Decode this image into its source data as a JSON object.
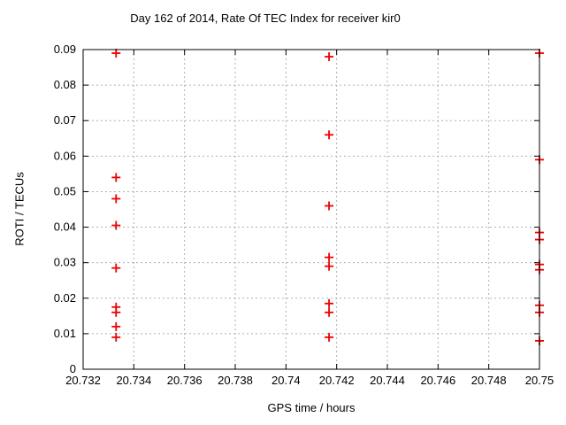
{
  "figure": {
    "background": "#ffffff",
    "text_color": "#000000",
    "border_color": "#000000",
    "grid_color": "#b0b0b0"
  },
  "chart_data": {
    "type": "scatter",
    "title": "Day 162 of 2014, Rate Of TEC Index for receiver kir0",
    "xlabel": "GPS time / hours",
    "ylabel": "ROTI / TECUs",
    "xlim": [
      20.732,
      20.75
    ],
    "ylim": [
      0,
      0.09
    ],
    "grid": "dotted",
    "legend": "none",
    "xticks": {
      "values": [
        20.732,
        20.734,
        20.736,
        20.738,
        20.74,
        20.742,
        20.744,
        20.746,
        20.748,
        20.75
      ],
      "labels": [
        "20.732",
        "20.734",
        "20.736",
        "20.738",
        "20.74",
        "20.742",
        "20.744",
        "20.746",
        "20.748",
        "20.75"
      ]
    },
    "yticks": {
      "values": [
        0,
        0.01,
        0.02,
        0.03,
        0.04,
        0.05,
        0.06,
        0.07,
        0.08,
        0.09
      ],
      "labels": [
        "0",
        "0.01",
        "0.02",
        "0.03",
        "0.04",
        "0.05",
        "0.06",
        "0.07",
        "0.08",
        "0.09"
      ]
    },
    "series": [
      {
        "name": "ROTI",
        "marker": "plus",
        "color": "#ee0000",
        "points": [
          [
            20.7333,
            0.089
          ],
          [
            20.7333,
            0.054
          ],
          [
            20.7333,
            0.048
          ],
          [
            20.7333,
            0.0405
          ],
          [
            20.7333,
            0.0285
          ],
          [
            20.7333,
            0.0175
          ],
          [
            20.7333,
            0.016
          ],
          [
            20.7333,
            0.012
          ],
          [
            20.7333,
            0.009
          ],
          [
            20.7417,
            0.088
          ],
          [
            20.7417,
            0.066
          ],
          [
            20.7417,
            0.046
          ],
          [
            20.7417,
            0.0315
          ],
          [
            20.7417,
            0.029
          ],
          [
            20.7417,
            0.0185
          ],
          [
            20.7417,
            0.016
          ],
          [
            20.7417,
            0.009
          ],
          [
            20.75,
            0.089
          ],
          [
            20.75,
            0.059
          ],
          [
            20.75,
            0.0385
          ],
          [
            20.75,
            0.0365
          ],
          [
            20.75,
            0.0295
          ],
          [
            20.75,
            0.028
          ],
          [
            20.75,
            0.018
          ],
          [
            20.75,
            0.016
          ],
          [
            20.75,
            0.008
          ]
        ]
      }
    ]
  }
}
